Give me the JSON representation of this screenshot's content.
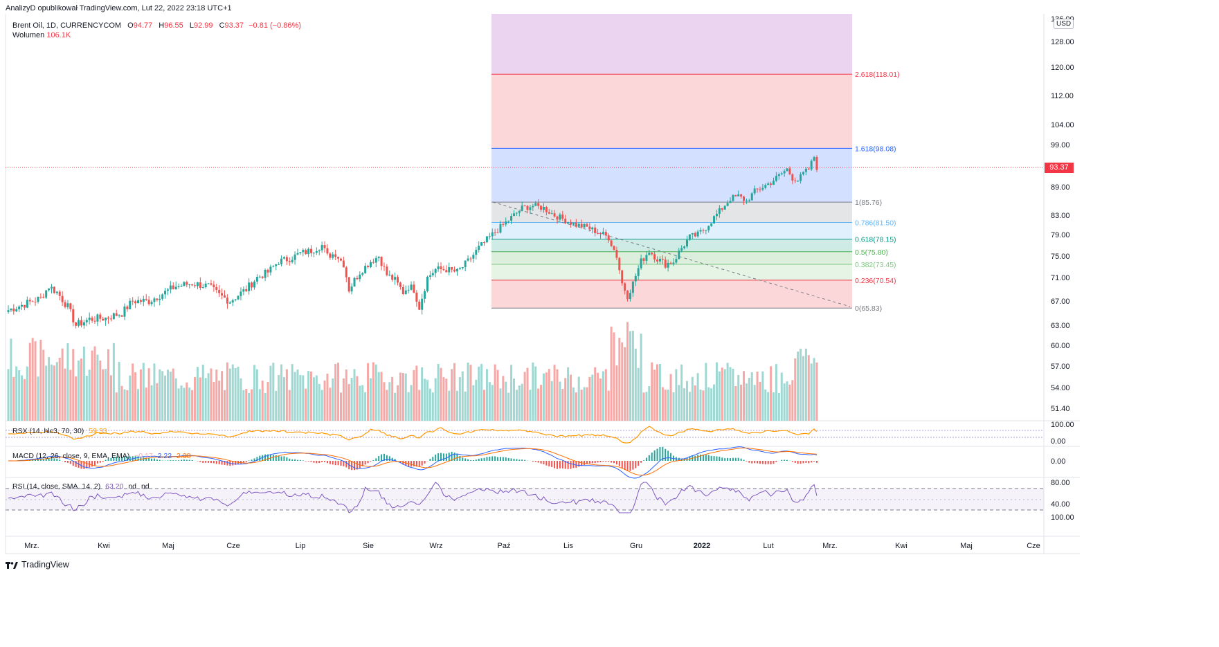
{
  "header": {
    "publisher": "AnalizyD opublikował TradingView.com, Lut 22, 2022 23:18 UTC+1"
  },
  "symbol": {
    "name": "Brent Oil, 1D, CURRENCYCOM",
    "open_label": "O",
    "open": "94.77",
    "high_label": "H",
    "high": "96.55",
    "low_label": "L",
    "low": "92.99",
    "close_label": "C",
    "close": "93.37",
    "change": "−0.81 (−0.86%)",
    "volume_label": "Wolumen",
    "volume": "106.1K"
  },
  "currency": "USD",
  "last_price": "93.37",
  "price_axis": [
    "136.00",
    "128.00",
    "120.00",
    "112.00",
    "104.00",
    "99.00",
    "93.37",
    "89.00",
    "83.00",
    "79.00",
    "75.00",
    "71.00",
    "67.00",
    "63.00",
    "60.00",
    "57.00",
    "54.00",
    "51.40"
  ],
  "price_ticks": [
    {
      "label": "136.00",
      "value": 136
    },
    {
      "label": "128.00",
      "value": 128
    },
    {
      "label": "120.00",
      "value": 120
    },
    {
      "label": "112.00",
      "value": 112
    },
    {
      "label": "104.00",
      "value": 104
    },
    {
      "label": "99.00",
      "value": 99
    },
    {
      "label": "89.00",
      "value": 89
    },
    {
      "label": "83.00",
      "value": 83
    },
    {
      "label": "79.00",
      "value": 79
    },
    {
      "label": "75.00",
      "value": 75
    },
    {
      "label": "71.00",
      "value": 71
    },
    {
      "label": "67.00",
      "value": 67
    },
    {
      "label": "63.00",
      "value": 63
    },
    {
      "label": "60.00",
      "value": 60
    },
    {
      "label": "57.00",
      "value": 57
    },
    {
      "label": "54.00",
      "value": 54
    },
    {
      "label": "51.40",
      "value": 51.4
    }
  ],
  "fibonacci": [
    {
      "label": "2.618(118.01)",
      "value": 118.01,
      "color": "#f23645"
    },
    {
      "label": "1.618(98.08)",
      "value": 98.08,
      "color": "#2962ff"
    },
    {
      "label": "1(85.76)",
      "value": 85.76,
      "color": "#787b86"
    },
    {
      "label": "0.786(81.50)",
      "value": 81.5,
      "color": "#64b5f6"
    },
    {
      "label": "0.618(78.15)",
      "value": 78.15,
      "color": "#089981"
    },
    {
      "label": "0.5(75.80)",
      "value": 75.8,
      "color": "#4caf50"
    },
    {
      "label": "0.382(73.45)",
      "value": 73.45,
      "color": "#81c784"
    },
    {
      "label": "0.236(70.54)",
      "value": 70.54,
      "color": "#f23645"
    },
    {
      "label": "0(65.83)",
      "value": 65.83,
      "color": "#787b86"
    }
  ],
  "indicators": {
    "rsx": {
      "label": "RSX (14, hlc3, 70, 30)",
      "value": "59.33",
      "axis": [
        "100.00",
        "0.00"
      ]
    },
    "macd": {
      "label": "MACD (12, 26, close, 9, EMA, EMA)",
      "hist": "−0.17",
      "macd": "2.22",
      "signal": "2.38",
      "axis": [
        "0.00"
      ]
    },
    "rsi": {
      "label": "RSI (14, close, SMA, 14, 2)",
      "value": "63.20",
      "na1": "nd",
      "na2": "nd",
      "axis": [
        "80.00",
        "40.00",
        "100.00"
      ]
    }
  },
  "time_axis": [
    "Mrz.",
    "Kwi",
    "Maj",
    "Cze",
    "Lip",
    "Sie",
    "Wrz",
    "Paź",
    "Lis",
    "Gru",
    "2022",
    "Lut",
    "Mrz.",
    "Kwi",
    "Maj",
    "Cze"
  ],
  "footer": {
    "brand": "TradingView"
  },
  "colors": {
    "up": "#26a69a",
    "down": "#ef5350",
    "up_vol": "#9fd8d2",
    "down_vol": "#f5a8a6",
    "ma_blue": "#2962ff",
    "ma_orange": "#ff6d00",
    "rsi_purple": "#7e57c2"
  }
}
